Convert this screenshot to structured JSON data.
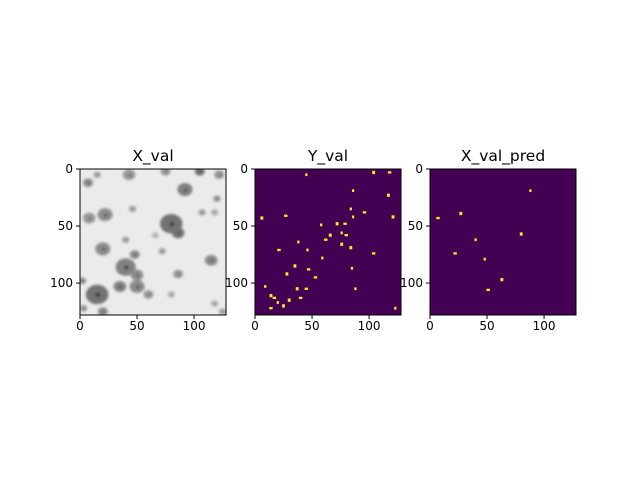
{
  "chart_data": [
    {
      "type": "heatmap",
      "title": "X_val",
      "colormap": "gray",
      "xlim": [
        0,
        128
      ],
      "ylim": [
        128,
        0
      ],
      "x_ticks": [
        0,
        50,
        100
      ],
      "y_ticks": [
        0,
        50,
        100
      ],
      "background_level": 0.92,
      "cells": [
        {
          "x": 7,
          "y": 12,
          "r": 4,
          "level": 0.55
        },
        {
          "x": 15,
          "y": 5,
          "r": 3,
          "level": 0.65
        },
        {
          "x": 43,
          "y": 5,
          "r": 5,
          "level": 0.6
        },
        {
          "x": 75,
          "y": 2,
          "r": 4,
          "level": 0.6
        },
        {
          "x": 92,
          "y": 18,
          "r": 6,
          "level": 0.5
        },
        {
          "x": 105,
          "y": 2,
          "r": 4,
          "level": 0.45
        },
        {
          "x": 122,
          "y": 5,
          "r": 4,
          "level": 0.6
        },
        {
          "x": 120,
          "y": 26,
          "r": 3,
          "level": 0.6
        },
        {
          "x": 118,
          "y": 38,
          "r": 3,
          "level": 0.7
        },
        {
          "x": 8,
          "y": 43,
          "r": 5,
          "level": 0.6
        },
        {
          "x": 22,
          "y": 40,
          "r": 6,
          "level": 0.55
        },
        {
          "x": 46,
          "y": 35,
          "r": 3,
          "level": 0.65
        },
        {
          "x": 80,
          "y": 48,
          "r": 9,
          "level": 0.45
        },
        {
          "x": 86,
          "y": 56,
          "r": 5,
          "level": 0.45
        },
        {
          "x": 107,
          "y": 38,
          "r": 3,
          "level": 0.65
        },
        {
          "x": 66,
          "y": 58,
          "r": 3,
          "level": 0.75
        },
        {
          "x": 40,
          "y": 62,
          "r": 3,
          "level": 0.65
        },
        {
          "x": 20,
          "y": 70,
          "r": 6,
          "level": 0.55
        },
        {
          "x": 48,
          "y": 75,
          "r": 4,
          "level": 0.55
        },
        {
          "x": 72,
          "y": 72,
          "r": 3,
          "level": 0.65
        },
        {
          "x": 115,
          "y": 80,
          "r": 5,
          "level": 0.55
        },
        {
          "x": 40,
          "y": 86,
          "r": 8,
          "level": 0.5
        },
        {
          "x": 50,
          "y": 93,
          "r": 5,
          "level": 0.55
        },
        {
          "x": 86,
          "y": 92,
          "r": 4,
          "level": 0.6
        },
        {
          "x": 2,
          "y": 98,
          "r": 3,
          "level": 0.55
        },
        {
          "x": 15,
          "y": 110,
          "r": 9,
          "level": 0.45
        },
        {
          "x": 35,
          "y": 103,
          "r": 5,
          "level": 0.5
        },
        {
          "x": 50,
          "y": 103,
          "r": 6,
          "level": 0.55
        },
        {
          "x": 60,
          "y": 110,
          "r": 4,
          "level": 0.6
        },
        {
          "x": 80,
          "y": 110,
          "r": 3,
          "level": 0.7
        },
        {
          "x": 3,
          "y": 122,
          "r": 3,
          "level": 0.6
        },
        {
          "x": 20,
          "y": 125,
          "r": 4,
          "level": 0.55
        },
        {
          "x": 118,
          "y": 118,
          "r": 3,
          "level": 0.7
        },
        {
          "x": 125,
          "y": 125,
          "r": 3,
          "level": 0.65
        }
      ]
    },
    {
      "type": "heatmap",
      "title": "Y_val",
      "colormap": "viridis",
      "background_color": "#440154",
      "foreground_color": "#fde725",
      "xlim": [
        0,
        128
      ],
      "ylim": [
        128,
        0
      ],
      "x_ticks": [
        0,
        50,
        100
      ],
      "y_ticks": [
        0,
        50,
        100
      ],
      "points": [
        [
          45,
          5
        ],
        [
          104,
          3
        ],
        [
          118,
          3
        ],
        [
          86,
          19
        ],
        [
          117,
          23
        ],
        [
          96,
          38
        ],
        [
          84,
          35
        ],
        [
          6,
          43
        ],
        [
          27,
          41
        ],
        [
          58,
          49
        ],
        [
          72,
          48
        ],
        [
          79,
          48
        ],
        [
          86,
          42
        ],
        [
          121,
          42
        ],
        [
          80,
          58
        ],
        [
          76,
          56
        ],
        [
          66,
          58
        ],
        [
          62,
          62
        ],
        [
          38,
          64
        ],
        [
          76,
          66
        ],
        [
          21,
          71
        ],
        [
          46,
          71
        ],
        [
          84,
          69
        ],
        [
          104,
          74
        ],
        [
          59,
          78
        ],
        [
          35,
          85
        ],
        [
          47,
          88
        ],
        [
          85,
          87
        ],
        [
          28,
          92
        ],
        [
          53,
          95
        ],
        [
          9,
          103
        ],
        [
          37,
          105
        ],
        [
          45,
          105
        ],
        [
          88,
          105
        ],
        [
          14,
          111
        ],
        [
          17,
          113
        ],
        [
          20,
          117
        ],
        [
          30,
          115
        ],
        [
          40,
          113
        ],
        [
          123,
          122
        ],
        [
          25,
          120
        ],
        [
          14,
          122
        ]
      ]
    },
    {
      "type": "heatmap",
      "title": "X_val_pred",
      "colormap": "viridis",
      "background_color": "#440154",
      "foreground_color": "#fde725",
      "xlim": [
        0,
        128
      ],
      "ylim": [
        128,
        0
      ],
      "x_ticks": [
        0,
        50,
        100
      ],
      "y_ticks": [
        0,
        50,
        100
      ],
      "points": [
        [
          88,
          19
        ],
        [
          27,
          39
        ],
        [
          7,
          43
        ],
        [
          40,
          62
        ],
        [
          80,
          57
        ],
        [
          22,
          74
        ],
        [
          48,
          79
        ],
        [
          63,
          97
        ],
        [
          51,
          106
        ]
      ]
    }
  ]
}
